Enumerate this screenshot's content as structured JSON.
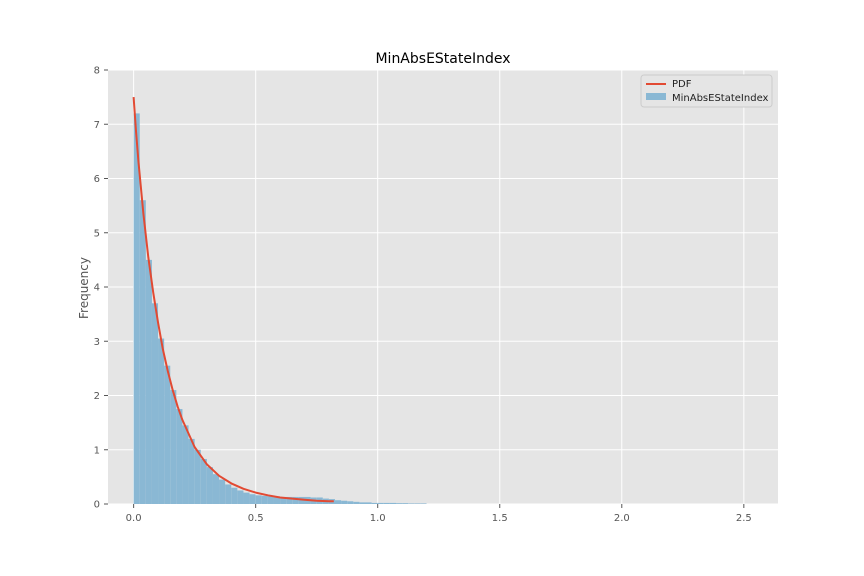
{
  "chart_data": {
    "type": "histogram",
    "title": "MinAbsEStateIndex",
    "xlabel": "",
    "ylabel": "Frequency",
    "xlim": [
      -0.105,
      2.64
    ],
    "ylim": [
      0,
      8
    ],
    "xticks": [
      0.0,
      0.5,
      1.0,
      1.5,
      2.0,
      2.5
    ],
    "xtick_labels": [
      "0.0",
      "0.5",
      "1.0",
      "1.5",
      "2.0",
      "2.5"
    ],
    "yticks": [
      0,
      1,
      2,
      3,
      4,
      5,
      6,
      7,
      8
    ],
    "ytick_labels": [
      "0",
      "1",
      "2",
      "3",
      "4",
      "5",
      "6",
      "7",
      "8"
    ],
    "grid": true,
    "legend_position": "top-right",
    "series": [
      {
        "name": "MinAbsEStateIndex",
        "kind": "histogram",
        "color": "#8ab8d4",
        "bin_width": 0.025,
        "x": [
          0.0,
          0.025,
          0.05,
          0.075,
          0.1,
          0.125,
          0.15,
          0.175,
          0.2,
          0.225,
          0.25,
          0.275,
          0.3,
          0.325,
          0.35,
          0.375,
          0.4,
          0.425,
          0.45,
          0.475,
          0.5,
          0.525,
          0.55,
          0.575,
          0.6,
          0.625,
          0.65,
          0.675,
          0.7,
          0.725,
          0.75,
          0.775,
          0.8,
          0.825,
          0.85,
          0.875,
          0.9,
          0.925,
          0.95,
          0.975,
          1.0,
          1.025,
          1.05,
          1.075,
          1.1,
          1.125,
          1.15,
          1.175
        ],
        "values": [
          7.2,
          5.6,
          4.5,
          3.7,
          3.05,
          2.55,
          2.1,
          1.75,
          1.45,
          1.2,
          1.0,
          0.83,
          0.68,
          0.55,
          0.45,
          0.36,
          0.3,
          0.25,
          0.21,
          0.18,
          0.16,
          0.15,
          0.14,
          0.14,
          0.13,
          0.13,
          0.13,
          0.13,
          0.13,
          0.12,
          0.12,
          0.1,
          0.09,
          0.07,
          0.06,
          0.05,
          0.04,
          0.03,
          0.03,
          0.02,
          0.02,
          0.02,
          0.02,
          0.015,
          0.015,
          0.01,
          0.01,
          0.01
        ]
      },
      {
        "name": "PDF",
        "kind": "line",
        "color": "#e24a33",
        "x": [
          0.0,
          0.01,
          0.02,
          0.04,
          0.06,
          0.08,
          0.1,
          0.12,
          0.14,
          0.16,
          0.18,
          0.2,
          0.25,
          0.3,
          0.35,
          0.4,
          0.45,
          0.5,
          0.55,
          0.6,
          0.65,
          0.7,
          0.75,
          0.8,
          0.82
        ],
        "values": [
          7.5,
          6.85,
          6.3,
          5.35,
          4.55,
          3.9,
          3.35,
          2.85,
          2.45,
          2.1,
          1.8,
          1.55,
          1.05,
          0.73,
          0.52,
          0.38,
          0.28,
          0.21,
          0.16,
          0.12,
          0.1,
          0.08,
          0.06,
          0.05,
          0.05
        ]
      }
    ]
  }
}
